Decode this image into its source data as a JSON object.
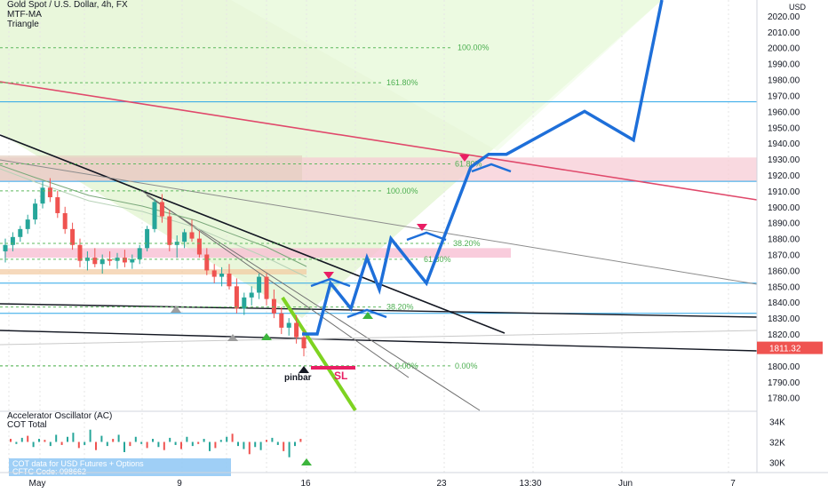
{
  "header": {
    "symbol": "Gold Spot / U.S. Dollar, 4h, FX",
    "indicator1": "MTF-MA",
    "indicator2": "Triangle"
  },
  "chart_data": [
    {
      "type": "candlestick",
      "title": "Gold Spot / U.S. Dollar, 4h, FX",
      "price_axis": {
        "label": "USD",
        "ylim": [
          1772,
          2030
        ],
        "ticks": [
          "2020.00",
          "2010.00",
          "2000.00",
          "1990.00",
          "1980.00",
          "1970.00",
          "1960.00",
          "1950.00",
          "1940.00",
          "1930.00",
          "1920.00",
          "1910.00",
          "1900.00",
          "1890.00",
          "1880.00",
          "1870.00",
          "1860.00",
          "1850.00",
          "1840.00",
          "1830.00",
          "1820.00",
          "1810.00",
          "1800.00",
          "1790.00",
          "1780.00"
        ],
        "ticks_values": [
          2020,
          2010,
          2000,
          1990,
          1980,
          1970,
          1960,
          1950,
          1940,
          1930,
          1920,
          1910,
          1900,
          1890,
          1880,
          1870,
          1860,
          1850,
          1840,
          1830,
          1820,
          1810,
          1800,
          1790,
          1780
        ],
        "last_price": "1811.32",
        "last_price_value": 1811.32,
        "top_label": "USD"
      },
      "time_axis": {
        "labels": [
          "May",
          "9",
          "16",
          "23",
          "13:30",
          "Jun",
          "7"
        ]
      },
      "candles": [
        [
          1872,
          1880,
          1865,
          1876
        ],
        [
          1876,
          1884,
          1872,
          1881
        ],
        [
          1881,
          1888,
          1878,
          1886
        ],
        [
          1886,
          1895,
          1883,
          1892
        ],
        [
          1892,
          1905,
          1889,
          1902
        ],
        [
          1902,
          1916,
          1899,
          1912
        ],
        [
          1912,
          1918,
          1903,
          1906
        ],
        [
          1906,
          1910,
          1893,
          1896
        ],
        [
          1896,
          1900,
          1883,
          1886
        ],
        [
          1886,
          1890,
          1873,
          1876
        ],
        [
          1876,
          1880,
          1862,
          1866
        ],
        [
          1866,
          1872,
          1860,
          1868
        ],
        [
          1868,
          1874,
          1862,
          1864
        ],
        [
          1864,
          1870,
          1858,
          1867
        ],
        [
          1867,
          1872,
          1863,
          1866
        ],
        [
          1866,
          1871,
          1861,
          1868
        ],
        [
          1868,
          1873,
          1862,
          1865
        ],
        [
          1865,
          1870,
          1861,
          1867
        ],
        [
          1867,
          1876,
          1864,
          1874
        ],
        [
          1874,
          1888,
          1872,
          1886
        ],
        [
          1886,
          1905,
          1884,
          1903
        ],
        [
          1903,
          1908,
          1890,
          1894
        ],
        [
          1894,
          1898,
          1872,
          1876
        ],
        [
          1876,
          1882,
          1868,
          1878
        ],
        [
          1878,
          1886,
          1874,
          1884
        ],
        [
          1884,
          1892,
          1878,
          1880
        ],
        [
          1880,
          1885,
          1868,
          1870
        ],
        [
          1870,
          1874,
          1857,
          1860
        ],
        [
          1860,
          1864,
          1852,
          1856
        ],
        [
          1856,
          1862,
          1850,
          1858
        ],
        [
          1858,
          1864,
          1848,
          1850
        ],
        [
          1850,
          1855,
          1833,
          1836
        ],
        [
          1836,
          1846,
          1832,
          1843
        ],
        [
          1843,
          1850,
          1838,
          1846
        ],
        [
          1846,
          1858,
          1842,
          1856
        ],
        [
          1856,
          1858,
          1838,
          1842
        ],
        [
          1842,
          1848,
          1830,
          1833
        ],
        [
          1833,
          1837,
          1820,
          1824
        ],
        [
          1824,
          1830,
          1819,
          1827
        ],
        [
          1827,
          1832,
          1814,
          1818
        ],
        [
          1818,
          1822,
          1806,
          1811
        ]
      ],
      "fib_levels": [
        {
          "label": "100.00%",
          "value": 2000
        },
        {
          "label": "161.80%",
          "value": 1978
        },
        {
          "label": "61.80%",
          "value": 1927
        },
        {
          "label": "100.00%",
          "value": 1910
        },
        {
          "label": "38.20%",
          "value": 1877
        },
        {
          "label": "61.80%",
          "value": 1867
        },
        {
          "label": "38.20%",
          "value": 1837
        },
        {
          "label": "0.00%",
          "value": 1800
        },
        {
          "label": "0.00%",
          "value": 1800
        }
      ],
      "horizontal_lines": [
        1966,
        1916,
        1852,
        1833
      ],
      "resistance_zone": [
        1916,
        1931
      ],
      "support_zone": [
        1868,
        1874
      ],
      "annotations": {
        "pinbar": "pinbar",
        "sl": "SL"
      },
      "projection_path_values": [
        1820,
        1820,
        1852,
        1836,
        1868,
        1848,
        1880,
        1852,
        1925,
        1933,
        1933,
        1960,
        1942,
        2030
      ]
    },
    {
      "type": "bar",
      "title": "Accelerator Oscillator (AC)",
      "subtitle": "COT Total",
      "y_ticks": [
        "34K",
        "32K",
        "30K"
      ],
      "y_ticks_values": [
        34000,
        32000,
        30000
      ],
      "ylim": [
        29000,
        35000
      ],
      "baseline": 32000,
      "values": [
        300,
        -200,
        400,
        600,
        -500,
        300,
        200,
        -400,
        700,
        -300,
        500,
        900,
        -600,
        -300,
        1200,
        -800,
        600,
        -400,
        300,
        700,
        -1000,
        -400,
        500,
        -200,
        -600,
        300,
        -500,
        -800,
        400,
        -300,
        -700,
        500,
        -400,
        -200,
        300,
        -900,
        -600,
        200,
        500,
        800,
        -400,
        -700,
        -1200,
        -500,
        -800,
        200,
        400,
        -300,
        -900,
        -1500,
        -400,
        300
      ],
      "legend_box": "COT data for USD Futures + Options\nCFTC Code: 098662"
    }
  ]
}
